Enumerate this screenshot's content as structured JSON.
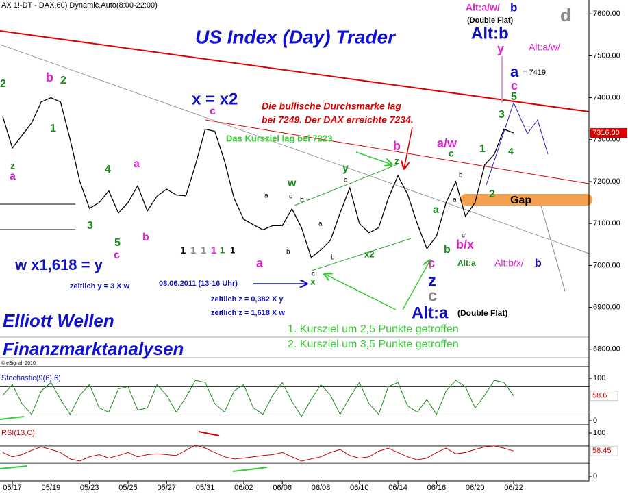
{
  "header": "AX 1!-DT - DAX,60) Dynamic,Auto(8:00-22:00)",
  "title": "US Index (Day) Trader",
  "brand": [
    "Elliott Wellen",
    "Finanzmarktanalysen"
  ],
  "copyright": "© eSignal, 2010",
  "annotations": [
    "Alt:a/w/",
    "b",
    "(Double Flat)",
    "Alt:b",
    "y",
    "Alt:a/w/",
    "d",
    "a",
    "= 7419",
    "c",
    "5",
    "3",
    "4",
    "x = x2",
    "c",
    "Die bullische Durchsmarke lag",
    "bei 7249. Der DAX erreichte 7234.",
    "Das Kursziel lag bei 7223",
    "b",
    "z",
    "a/w",
    "c",
    "1",
    "2",
    "Gap",
    "2",
    "b",
    "2",
    "1",
    "z",
    "a",
    "4",
    "a",
    "3",
    "5",
    "c",
    "b",
    "y",
    "w",
    "a",
    "c",
    "z",
    "c",
    "b/x",
    "b",
    "a",
    "Alt:a",
    "Alt:b/x/",
    "b",
    "Alt:a",
    "(Double Flat)",
    "w x1,618 = y",
    "zeitlich y = 3 X w",
    "08.06.2011 (13-16 Uhr)",
    "zeitlich z = 0,382 X y",
    "zeitlich z = 1,618 X w",
    "x",
    "x2",
    "1. Kursziel um 2,5 Punkte getroffen",
    "2. Kursziel um 3,5 Punkte getroffen",
    "1",
    "1",
    "1",
    "1",
    "1",
    "1",
    "a",
    "b",
    "c",
    "b",
    "a",
    "b",
    "c",
    "c",
    "b",
    "a",
    "c"
  ],
  "chart_data": [
    {
      "type": "line",
      "color": "#000000",
      "categories": [
        null,
        "05/17",
        null,
        null,
        null,
        "05/19",
        null,
        null,
        null,
        "05/23",
        null,
        null,
        null,
        "05/25",
        null,
        null,
        null,
        "05/27",
        null,
        null,
        null,
        "05/31",
        null,
        null,
        null,
        "06/02",
        null,
        null,
        null,
        "06/06",
        null,
        null,
        null,
        "06/08",
        null,
        null,
        null,
        "06/10",
        null,
        null,
        null,
        "06/14",
        null,
        null,
        null,
        "06/16",
        null,
        null,
        null,
        "06/20",
        null,
        null,
        null,
        "06/22"
      ],
      "values": [
        7355,
        7280,
        7310,
        7340,
        7390,
        7400,
        7390,
        7300,
        7200,
        7136,
        7150,
        7178,
        7125,
        7150,
        7190,
        7130,
        7165,
        7182,
        7168,
        7166,
        7240,
        7325,
        7320,
        7250,
        7160,
        7110,
        7097,
        7085,
        7095,
        7095,
        7135,
        7090,
        7019,
        7037,
        7060,
        7125,
        7185,
        7100,
        7078,
        7090,
        7160,
        7214,
        7170,
        7100,
        7040,
        7070,
        7150,
        7200,
        7117,
        7150,
        7240,
        7265,
        7325,
        7316
      ],
      "value_labels": [
        null,
        null,
        null,
        null,
        null,
        null,
        null,
        null,
        null,
        null,
        null,
        null,
        null,
        null,
        null,
        null,
        null,
        null,
        null,
        null,
        null,
        null,
        null,
        null,
        null,
        null,
        null,
        null,
        null,
        null,
        null,
        null,
        null,
        null,
        null,
        null,
        null,
        null,
        null,
        null,
        null,
        null,
        null,
        null,
        null,
        null,
        null,
        null,
        null,
        null,
        null,
        null,
        null,
        "7316.00"
      ],
      "ylim": [
        6767,
        7633
      ],
      "yticks": [
        {
          "value": 7600,
          "label": "7600.00"
        },
        {
          "value": 7500,
          "label": "7500.00"
        },
        {
          "value": 7400,
          "label": "7400.00"
        },
        {
          "value": 7300,
          "label": "7300.00"
        },
        {
          "value": 7200,
          "label": "7200.00"
        },
        {
          "value": 7100,
          "label": "7100.00"
        },
        {
          "value": 7000,
          "label": "7000.00"
        },
        {
          "value": 6900,
          "label": "6900.00"
        },
        {
          "value": 6800,
          "label": "6800.00"
        }
      ]
    },
    {
      "type": "line",
      "title": "Stochastic(9(6),6)",
      "color": "#1a8a1a",
      "values": [
        60,
        85,
        40,
        15,
        70,
        90,
        50,
        15,
        60,
        85,
        30,
        20,
        75,
        80,
        25,
        30,
        85,
        60,
        20,
        55,
        95,
        90,
        40,
        20,
        70,
        85,
        30,
        15,
        60,
        90,
        45,
        10,
        50,
        85,
        60,
        15,
        55,
        90,
        40,
        15,
        80,
        90,
        35,
        20,
        50,
        15,
        70,
        95,
        80,
        30,
        60,
        95,
        90,
        58.6
      ],
      "ylim": [
        -6.5,
        119.4
      ],
      "yticks": [
        100,
        0
      ],
      "levels": [
        80,
        20
      ]
    },
    {
      "type": "line",
      "title": "RSI(13,C)",
      "color": "#cc0000",
      "values": [
        55,
        45,
        50,
        60,
        68,
        62,
        55,
        40,
        35,
        45,
        50,
        42,
        48,
        55,
        45,
        50,
        52,
        50,
        48,
        60,
        72,
        65,
        55,
        45,
        40,
        42,
        45,
        48,
        50,
        55,
        45,
        35,
        40,
        45,
        55,
        62,
        48,
        42,
        45,
        58,
        65,
        55,
        45,
        38,
        42,
        55,
        65,
        52,
        55,
        62,
        68,
        70,
        65,
        58.45
      ],
      "ylim": [
        -11.1,
        115.9
      ],
      "yticks": [
        100,
        0
      ],
      "levels": [
        70,
        30
      ]
    }
  ]
}
